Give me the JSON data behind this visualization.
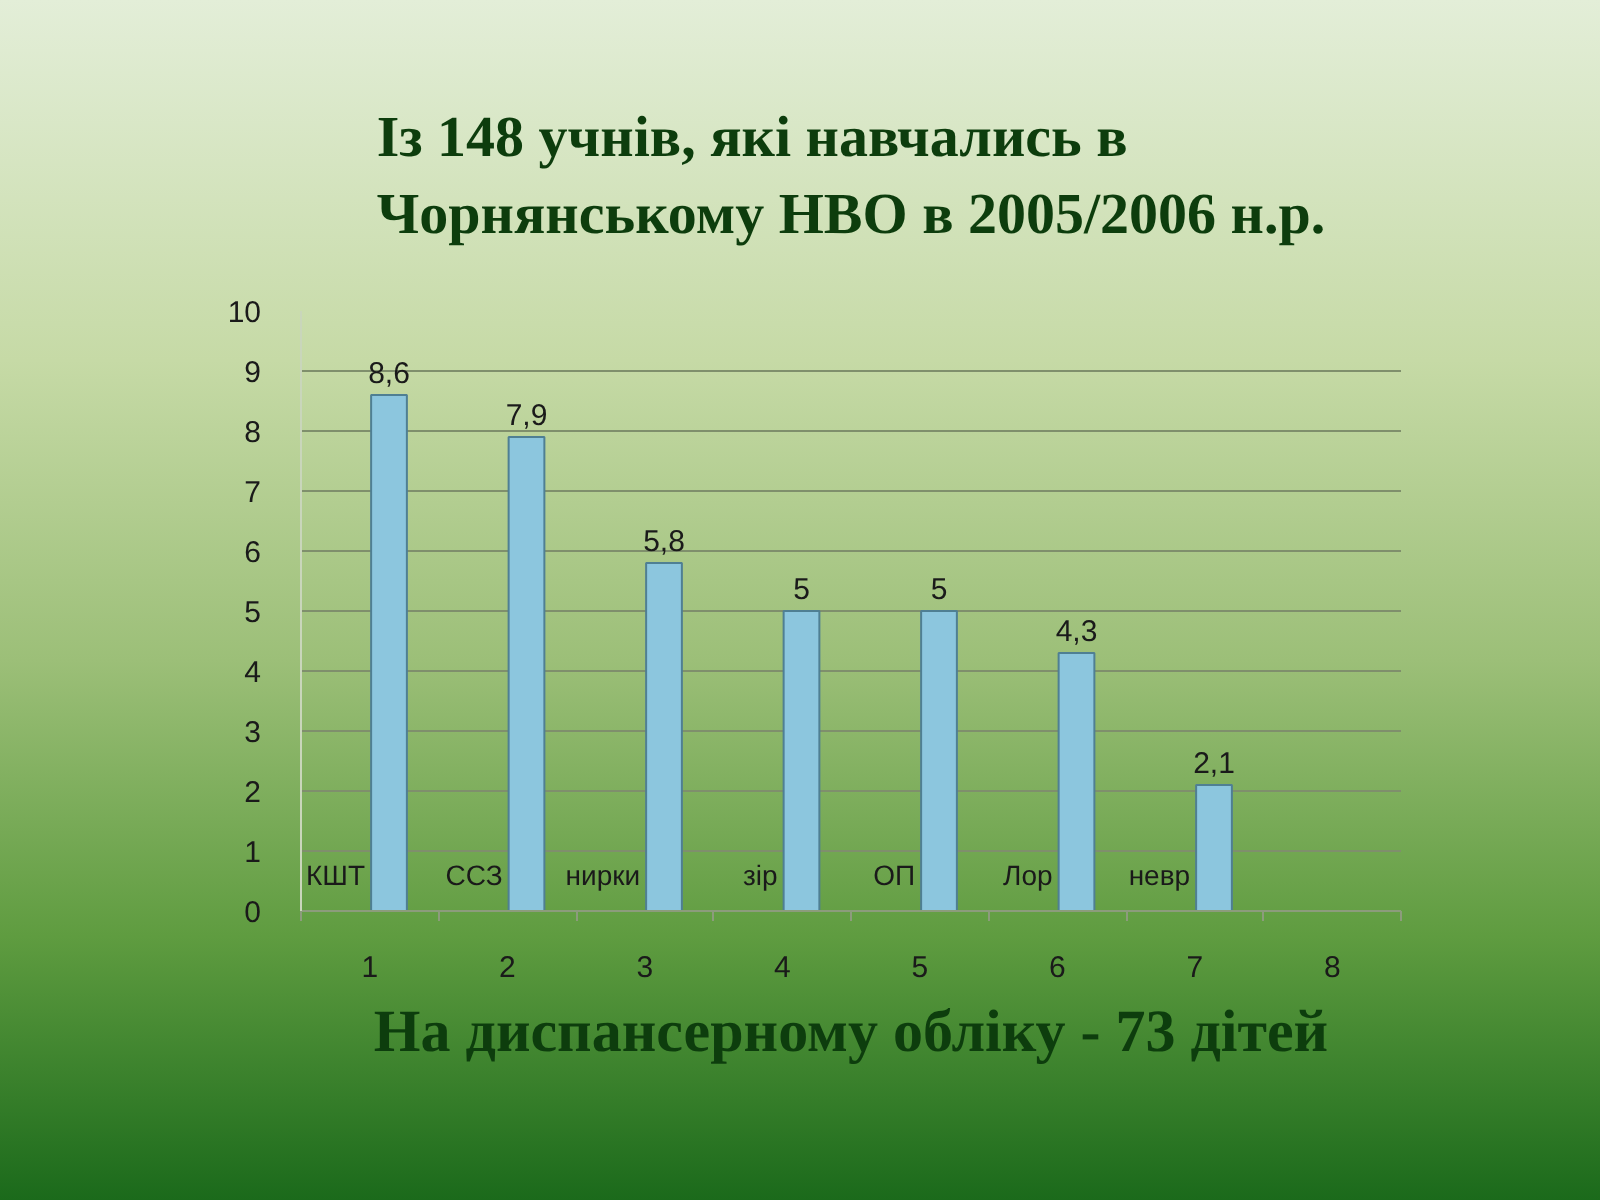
{
  "chart_data": {
    "type": "bar",
    "title": "Із 148 учнів, які навчались в\nЧорнянському НВО в 2005/2006 н.р.",
    "categories": [
      "1",
      "2",
      "3",
      "4",
      "5",
      "6",
      "7",
      "8"
    ],
    "values": [
      8.6,
      7.9,
      5.8,
      5,
      5,
      4.3,
      2.1,
      null
    ],
    "value_labels": [
      "8,6",
      "7,9",
      "5,8",
      "5",
      "5",
      "4,3",
      "2,1",
      null
    ],
    "color": "#8cc6de",
    "ylim": [
      0,
      10
    ],
    "yticks": [
      0,
      1,
      2,
      3,
      4,
      5,
      6,
      7,
      8,
      9,
      10
    ],
    "grid": "y",
    "annotations": [
      "КШТ",
      "ССЗ",
      "нирки",
      "зір",
      "ОП",
      "Лор",
      "невр",
      "На диспансерному обліку - 73 дітей"
    ]
  }
}
